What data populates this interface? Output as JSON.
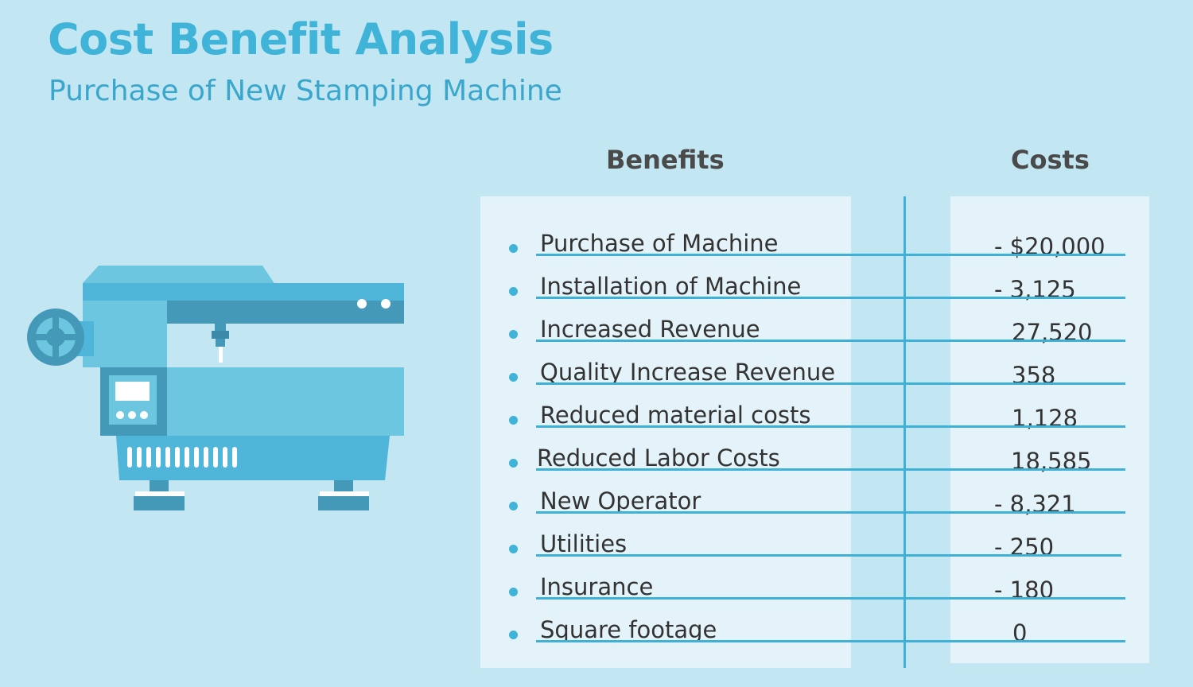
{
  "header": {
    "title": "Cost Benefit Analysis",
    "subtitle": "Purchase of New Stamping Machine"
  },
  "table": {
    "benefits_header": "Benefits",
    "costs_header": "Costs",
    "rows": [
      {
        "label": "Purchase of Machine",
        "value": "- $20,000"
      },
      {
        "label": "Installation of Machine",
        "value": "- 3,125"
      },
      {
        "label": "Increased Revenue",
        "value": "27,520"
      },
      {
        "label": "Quality Increase Revenue",
        "value": "358"
      },
      {
        "label": "Reduced material costs",
        "value": "1,128"
      },
      {
        "label": "Reduced Labor Costs",
        "value": "18,585"
      },
      {
        "label": "New Operator",
        "value": "- 8,321"
      },
      {
        "label": "Utilities",
        "value": "- 250"
      },
      {
        "label": "Insurance",
        "value": "- 180"
      },
      {
        "label": "Square footage",
        "value": "0"
      }
    ]
  },
  "illustration": {
    "icon": "stamping-machine-icon"
  },
  "colors": {
    "background": "#c2e6f2",
    "accent": "#3fb3d8",
    "panel": "#e3f3f9",
    "text": "#333333"
  }
}
